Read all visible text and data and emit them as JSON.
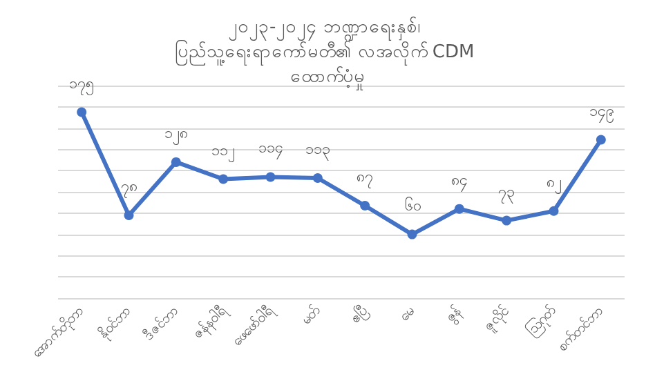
{
  "chart_data": {
    "type": "line",
    "title": "၂၀၂၃-၂၀၂၄ ဘဏ္ဍာရေးနှစ်၊ ပြည်သူ့ရေးရာကော်မတီ၏ လအလိုက် CDM ထောက်ပံ့မှု",
    "categories": [
      "အောက်တိုဘာ",
      "နိုဝင်ဘာ",
      "ဒီဇင်ဘာ",
      "ဇန်နဝါရီ",
      "ဖေဖော်ဝါရီ",
      "မတ်",
      "ဧပြီ",
      "မေ",
      "ဇွန်",
      "ဇူလိုင်",
      "ဩဂုတ်",
      "စက်တင်ဘာ"
    ],
    "series": [
      {
        "color": "#4472c4",
        "values": [
          175,
          78,
          128,
          112,
          114,
          113,
          87,
          60,
          84,
          73,
          82,
          149
        ],
        "value_labels": [
          "၁၇၅",
          "၇၈",
          "၁၂၈",
          "၁၁၂",
          "၁၁၄",
          "၁၁၃",
          "၈၇",
          "၆၀",
          "၈၄",
          "၇၃",
          "၈၂",
          "၁၄၉"
        ]
      }
    ],
    "ylim": [
      0,
      200
    ],
    "yticks": [
      {
        "value": 0,
        "label": null
      },
      {
        "value": 20,
        "label": null
      },
      {
        "value": 40,
        "label": null
      },
      {
        "value": 60,
        "label": null
      },
      {
        "value": 80,
        "label": null
      },
      {
        "value": 100,
        "label": null
      },
      {
        "value": 120,
        "label": null
      },
      {
        "value": 140,
        "label": null
      },
      {
        "value": 160,
        "label": null
      },
      {
        "value": 180,
        "label": null
      },
      {
        "value": 200,
        "label": null
      }
    ],
    "grid": "y",
    "tick_labels": "x",
    "marker": "circle",
    "line_style": "solid"
  }
}
